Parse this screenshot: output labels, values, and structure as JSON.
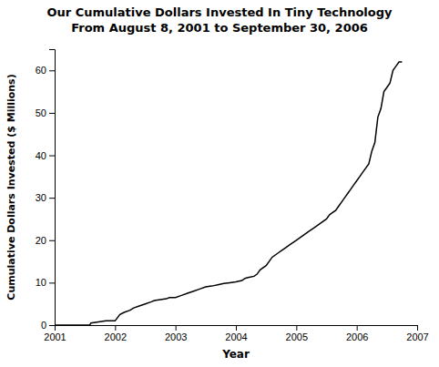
{
  "chart_data": {
    "type": "line",
    "title": "Our Cumulative Dollars Invested In Tiny Technology",
    "subtitle": "From August 8, 2001 to September 30, 2006",
    "x_label": "Year",
    "y_label": "Cumulative Dollars Invested ($ Millions)",
    "x": [
      2001.0,
      2001.58,
      2001.6,
      2001.75,
      2001.85,
      2002.0,
      2002.08,
      2002.15,
      2002.25,
      2002.3,
      2002.4,
      2002.5,
      2002.6,
      2002.65,
      2002.75,
      2002.85,
      2002.9,
      2003.0,
      2003.1,
      2003.2,
      2003.3,
      2003.4,
      2003.5,
      2003.6,
      2003.7,
      2003.8,
      2003.9,
      2004.0,
      2004.1,
      2004.15,
      2004.2,
      2004.3,
      2004.35,
      2004.4,
      2004.5,
      2004.55,
      2004.6,
      2004.7,
      2004.75,
      2004.8,
      2004.9,
      2005.0,
      2005.1,
      2005.2,
      2005.3,
      2005.4,
      2005.5,
      2005.55,
      2005.6,
      2005.65,
      2005.7,
      2005.75,
      2005.8,
      2005.85,
      2005.9,
      2005.95,
      2006.0,
      2006.05,
      2006.1,
      2006.2,
      2006.25,
      2006.3,
      2006.35,
      2006.4,
      2006.45,
      2006.5,
      2006.55,
      2006.6,
      2006.65,
      2006.7,
      2006.75
    ],
    "values": [
      0.0,
      0.0,
      0.5,
      0.8,
      1.0,
      1.0,
      2.5,
      3.0,
      3.5,
      4.0,
      4.5,
      5.0,
      5.5,
      5.8,
      6.0,
      6.2,
      6.5,
      6.5,
      7.0,
      7.5,
      8.0,
      8.5,
      9.0,
      9.2,
      9.5,
      9.8,
      10.0,
      10.2,
      10.5,
      11.0,
      11.2,
      11.5,
      12.0,
      13.0,
      14.0,
      15.0,
      16.0,
      17.0,
      17.5,
      18.0,
      19.0,
      20.0,
      21.0,
      22.0,
      23.0,
      24.0,
      25.0,
      26.0,
      26.5,
      27.0,
      28.0,
      29.0,
      30.0,
      31.0,
      32.0,
      33.0,
      34.0,
      35.0,
      36.0,
      38.0,
      41.0,
      43.0,
      49.0,
      51.0,
      55.0,
      56.0,
      57.0,
      60.0,
      61.0,
      62.0,
      62.0
    ],
    "color": "#000000",
    "xlim": [
      2001,
      2007
    ],
    "ylim": [
      0,
      65
    ],
    "xticks": [
      2001,
      2002,
      2003,
      2004,
      2005,
      2006,
      2007
    ],
    "yticks": [
      0,
      10,
      20,
      30,
      40,
      50,
      60
    ],
    "grid": false
  }
}
